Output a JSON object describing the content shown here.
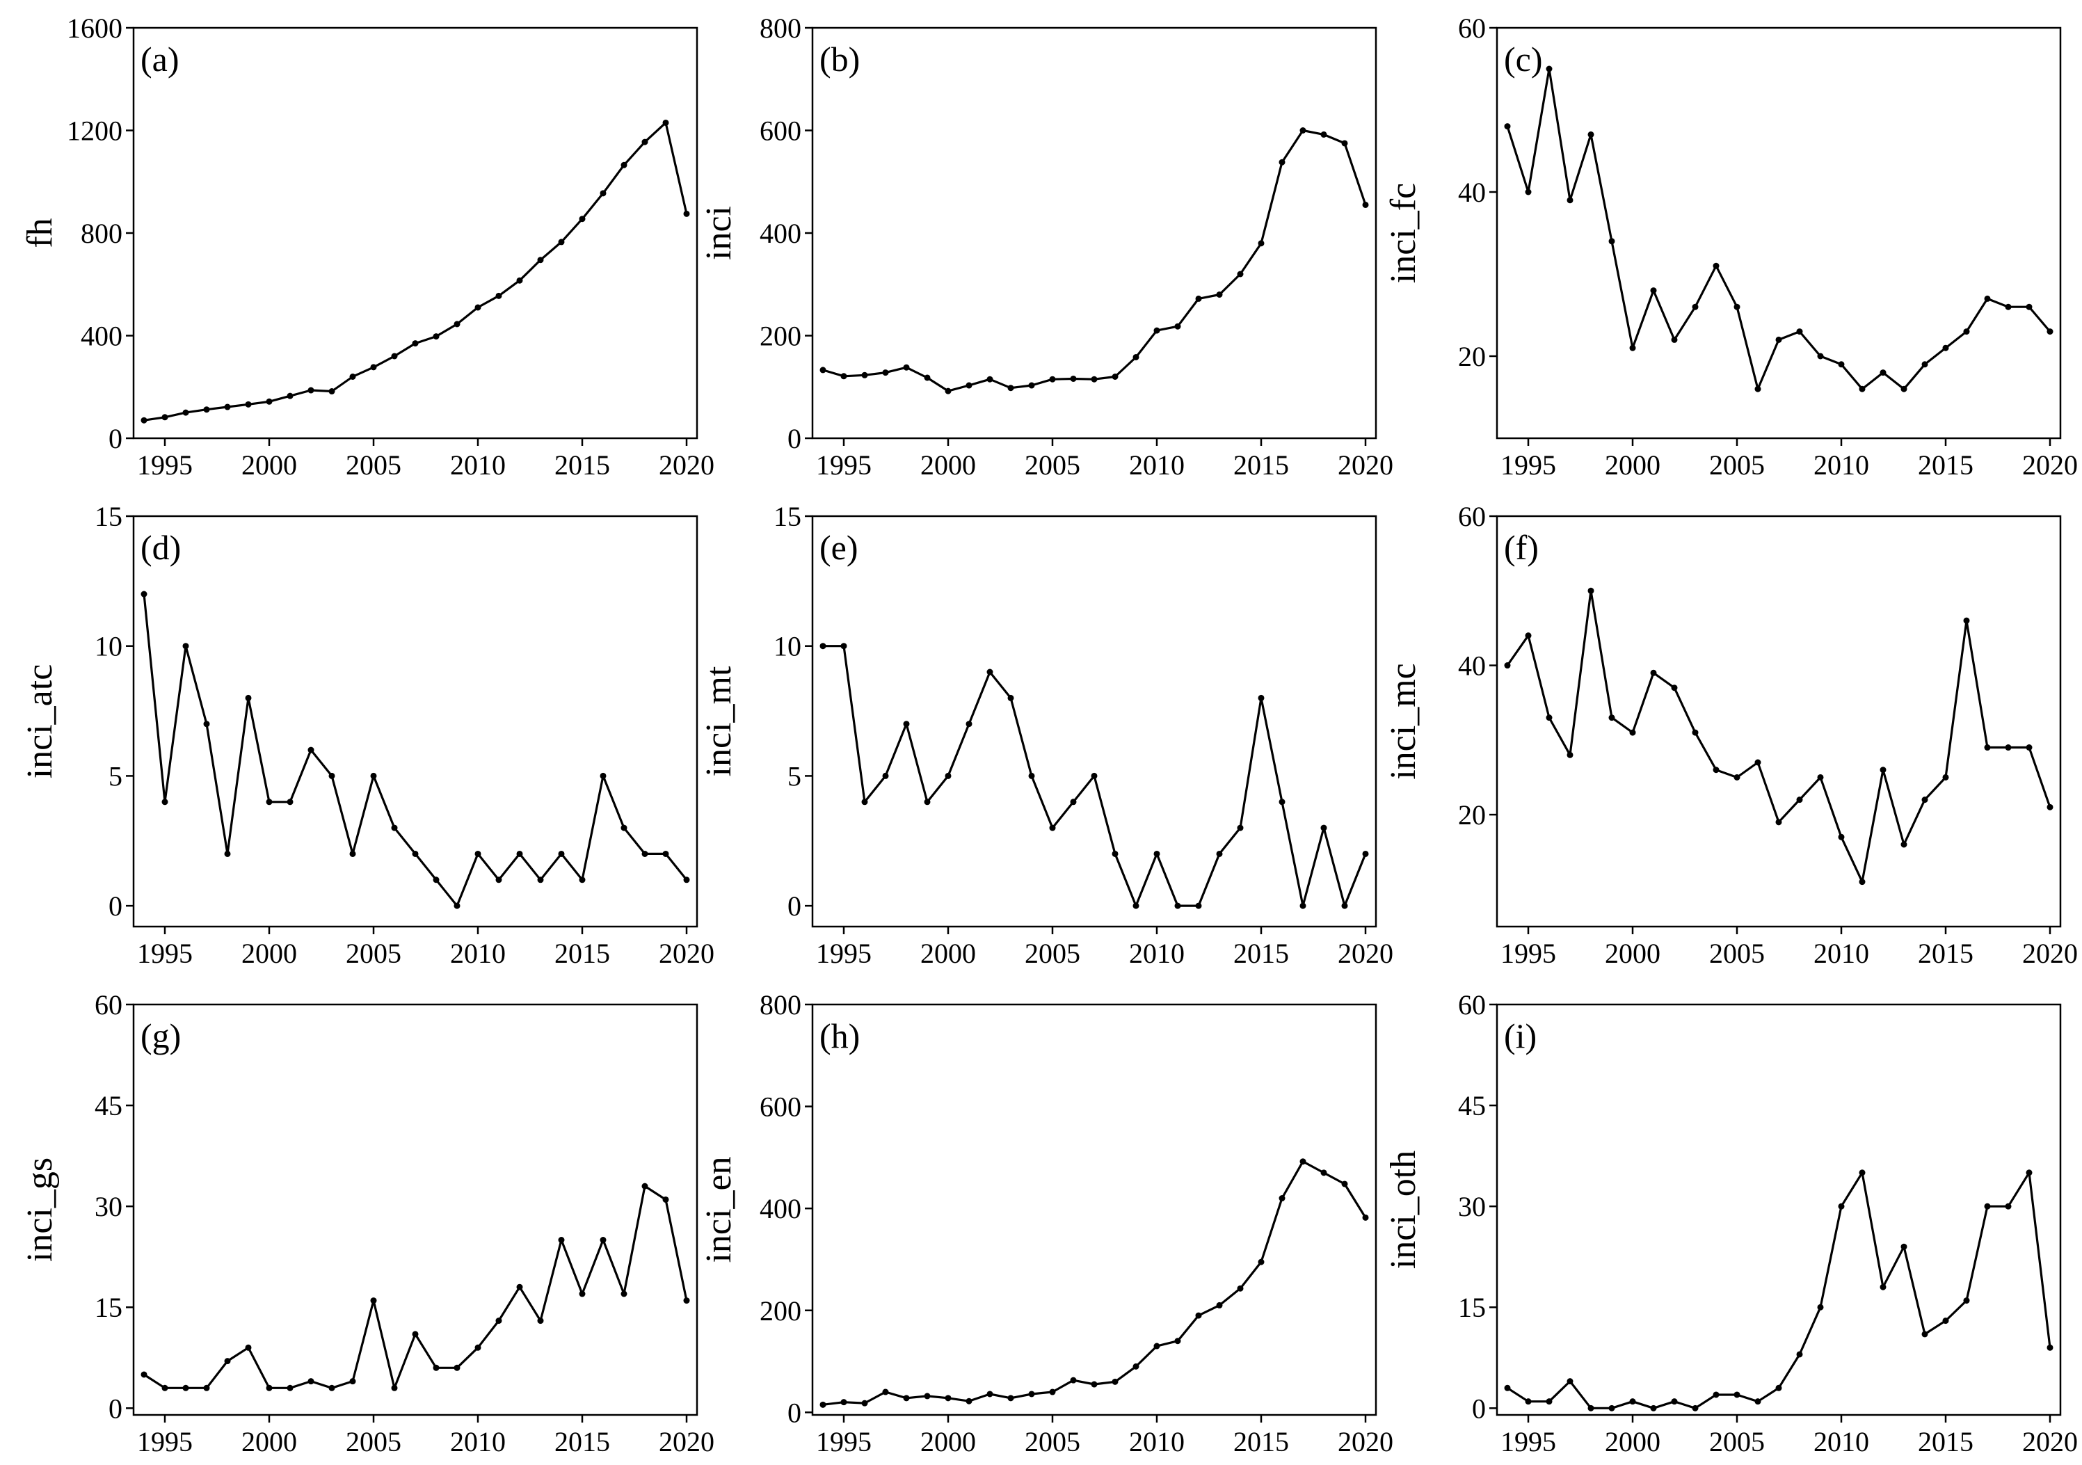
{
  "figure": {
    "colors": {
      "line": "#000000",
      "marker": "#000000",
      "background": "#ffffff"
    }
  },
  "chart_data": [
    {
      "id": "a",
      "type": "line",
      "title": "(a)",
      "xlabel": "",
      "ylabel": "fh",
      "x": [
        1994,
        1995,
        1996,
        1997,
        1998,
        1999,
        2000,
        2001,
        2002,
        2003,
        2004,
        2005,
        2006,
        2007,
        2008,
        2009,
        2010,
        2011,
        2012,
        2013,
        2014,
        2015,
        2016,
        2017,
        2018,
        2019,
        2020
      ],
      "values": [
        70,
        82,
        100,
        112,
        122,
        132,
        143,
        165,
        187,
        183,
        240,
        277,
        320,
        370,
        397,
        445,
        510,
        555,
        615,
        695,
        765,
        855,
        955,
        1065,
        1155,
        1230,
        875
      ],
      "ylim": [
        0,
        1600
      ],
      "yticks": [
        0,
        400,
        800,
        1200,
        1600
      ],
      "xticks": [
        1995,
        2000,
        2005,
        2010,
        2015,
        2020
      ],
      "xlim": [
        1993.5,
        2020.5
      ]
    },
    {
      "id": "b",
      "type": "line",
      "title": "(b)",
      "xlabel": "",
      "ylabel": "inci",
      "x": [
        1994,
        1995,
        1996,
        1997,
        1998,
        1999,
        2000,
        2001,
        2002,
        2003,
        2004,
        2005,
        2006,
        2007,
        2008,
        2009,
        2010,
        2011,
        2012,
        2013,
        2014,
        2015,
        2016,
        2017,
        2018,
        2019,
        2020
      ],
      "values": [
        133,
        121,
        123,
        128,
        138,
        118,
        92,
        103,
        115,
        98,
        103,
        115,
        116,
        115,
        120,
        158,
        210,
        218,
        272,
        280,
        320,
        380,
        538,
        600,
        592,
        575,
        455
      ],
      "ylim": [
        0,
        800
      ],
      "yticks": [
        0,
        200,
        400,
        600,
        800
      ],
      "xticks": [
        1995,
        2000,
        2005,
        2010,
        2015,
        2020
      ],
      "xlim": [
        1993.5,
        2020.5
      ]
    },
    {
      "id": "c",
      "type": "line",
      "title": "(c)",
      "xlabel": "",
      "ylabel": "inci_fc",
      "x": [
        1994,
        1995,
        1996,
        1997,
        1998,
        1999,
        2000,
        2001,
        2002,
        2003,
        2004,
        2005,
        2006,
        2007,
        2008,
        2009,
        2010,
        2011,
        2012,
        2013,
        2014,
        2015,
        2016,
        2017,
        2018,
        2019,
        2020
      ],
      "values": [
        48,
        40,
        55,
        39,
        47,
        34,
        21,
        28,
        22,
        26,
        31,
        26,
        16,
        22,
        23,
        20,
        19,
        16,
        18,
        16,
        19,
        21,
        23,
        27,
        26,
        26,
        23
      ],
      "ylim": [
        10,
        60
      ],
      "yticks": [
        20,
        40,
        60
      ],
      "xticks": [
        1995,
        2000,
        2005,
        2010,
        2015,
        2020
      ],
      "xlim": [
        1993.5,
        2020.5
      ]
    },
    {
      "id": "d",
      "type": "line",
      "title": "(d)",
      "xlabel": "",
      "ylabel": "inci_atc",
      "x": [
        1994,
        1995,
        1996,
        1997,
        1998,
        1999,
        2000,
        2001,
        2002,
        2003,
        2004,
        2005,
        2006,
        2007,
        2008,
        2009,
        2010,
        2011,
        2012,
        2013,
        2014,
        2015,
        2016,
        2017,
        2018,
        2019,
        2020
      ],
      "values": [
        12,
        4,
        10,
        7,
        2,
        8,
        4,
        4,
        6,
        5,
        2,
        5,
        3,
        2,
        1,
        0,
        2,
        1,
        2,
        1,
        2,
        1,
        5,
        3,
        2,
        2,
        1
      ],
      "ylim": [
        -0.8,
        15
      ],
      "yticks": [
        0,
        5,
        10,
        15
      ],
      "xticks": [
        1995,
        2000,
        2005,
        2010,
        2015,
        2020
      ],
      "xlim": [
        1993.5,
        2020.5
      ]
    },
    {
      "id": "e",
      "type": "line",
      "title": "(e)",
      "xlabel": "",
      "ylabel": "inci_mt",
      "x": [
        1994,
        1995,
        1996,
        1997,
        1998,
        1999,
        2000,
        2001,
        2002,
        2003,
        2004,
        2005,
        2006,
        2007,
        2008,
        2009,
        2010,
        2011,
        2012,
        2013,
        2014,
        2015,
        2016,
        2017,
        2018,
        2019,
        2020
      ],
      "values": [
        10,
        10,
        4,
        5,
        7,
        4,
        5,
        7,
        9,
        8,
        5,
        3,
        4,
        5,
        2,
        0,
        2,
        0,
        0,
        2,
        3,
        8,
        4,
        0,
        3,
        0,
        2
      ],
      "ylim": [
        -0.8,
        15
      ],
      "yticks": [
        0,
        5,
        10,
        15
      ],
      "xticks": [
        1995,
        2000,
        2005,
        2010,
        2015,
        2020
      ],
      "xlim": [
        1993.5,
        2020.5
      ]
    },
    {
      "id": "f",
      "type": "line",
      "title": "(f)",
      "xlabel": "",
      "ylabel": "inci_mc",
      "x": [
        1994,
        1995,
        1996,
        1997,
        1998,
        1999,
        2000,
        2001,
        2002,
        2003,
        2004,
        2005,
        2006,
        2007,
        2008,
        2009,
        2010,
        2011,
        2012,
        2013,
        2014,
        2015,
        2016,
        2017,
        2018,
        2019,
        2020
      ],
      "values": [
        40,
        44,
        33,
        28,
        50,
        33,
        31,
        39,
        37,
        31,
        26,
        25,
        27,
        19,
        22,
        25,
        17,
        11,
        26,
        16,
        22,
        25,
        46,
        29,
        29,
        29,
        21
      ],
      "ylim": [
        5,
        60
      ],
      "yticks": [
        20,
        40,
        60
      ],
      "xticks": [
        1995,
        2000,
        2005,
        2010,
        2015,
        2020
      ],
      "xlim": [
        1993.5,
        2020.5
      ]
    },
    {
      "id": "g",
      "type": "line",
      "title": "(g)",
      "xlabel": "",
      "ylabel": "inci_gs",
      "x": [
        1994,
        1995,
        1996,
        1997,
        1998,
        1999,
        2000,
        2001,
        2002,
        2003,
        2004,
        2005,
        2006,
        2007,
        2008,
        2009,
        2010,
        2011,
        2012,
        2013,
        2014,
        2015,
        2016,
        2017,
        2018,
        2019,
        2020
      ],
      "values": [
        5,
        3,
        3,
        3,
        7,
        9,
        3,
        3,
        4,
        3,
        4,
        16,
        3,
        11,
        6,
        6,
        9,
        13,
        18,
        13,
        25,
        17,
        25,
        17,
        33,
        31,
        16
      ],
      "ylim": [
        -1,
        60
      ],
      "yticks": [
        0,
        15,
        30,
        45,
        60
      ],
      "xticks": [
        1995,
        2000,
        2005,
        2010,
        2015,
        2020
      ],
      "xlim": [
        1993.5,
        2020.5
      ]
    },
    {
      "id": "h",
      "type": "line",
      "title": "(h)",
      "xlabel": "",
      "ylabel": "inci_en",
      "x": [
        1994,
        1995,
        1996,
        1997,
        1998,
        1999,
        2000,
        2001,
        2002,
        2003,
        2004,
        2005,
        2006,
        2007,
        2008,
        2009,
        2010,
        2011,
        2012,
        2013,
        2014,
        2015,
        2016,
        2017,
        2018,
        2019,
        2020
      ],
      "values": [
        15,
        20,
        18,
        40,
        28,
        32,
        28,
        22,
        36,
        28,
        36,
        40,
        63,
        55,
        60,
        90,
        130,
        140,
        190,
        210,
        243,
        295,
        420,
        492,
        470,
        448,
        382
      ],
      "ylim": [
        -5,
        800
      ],
      "yticks": [
        0,
        200,
        400,
        600,
        800
      ],
      "xticks": [
        1995,
        2000,
        2005,
        2010,
        2015,
        2020
      ],
      "xlim": [
        1993.5,
        2020.5
      ]
    },
    {
      "id": "i",
      "type": "line",
      "title": "(i)",
      "xlabel": "",
      "ylabel": "inci_oth",
      "x": [
        1994,
        1995,
        1996,
        1997,
        1998,
        1999,
        2000,
        2001,
        2002,
        2003,
        2004,
        2005,
        2006,
        2007,
        2008,
        2009,
        2010,
        2011,
        2012,
        2013,
        2014,
        2015,
        2016,
        2017,
        2018,
        2019,
        2020
      ],
      "values": [
        3,
        1,
        1,
        4,
        0,
        0,
        1,
        0,
        1,
        0,
        2,
        2,
        1,
        3,
        8,
        15,
        30,
        35,
        18,
        24,
        11,
        13,
        16,
        30,
        30,
        35,
        9
      ],
      "ylim": [
        -1,
        60
      ],
      "yticks": [
        0,
        15,
        30,
        45,
        60
      ],
      "xticks": [
        1995,
        2000,
        2005,
        2010,
        2015,
        2020
      ],
      "xlim": [
        1993.5,
        2020.5
      ]
    }
  ]
}
